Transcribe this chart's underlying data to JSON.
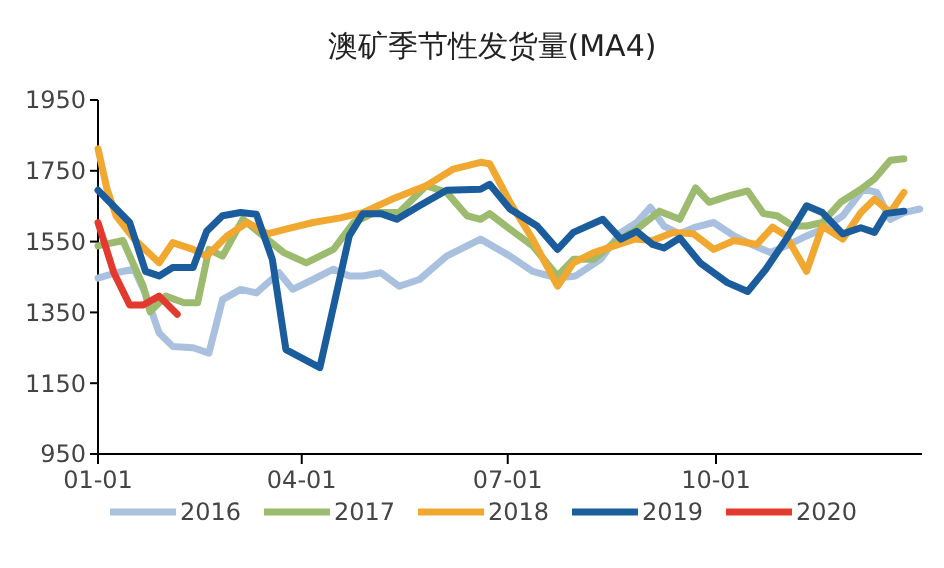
{
  "chart_data": {
    "type": "line",
    "title": "澳矿季节性发货量(MA4)",
    "xlim": [
      "--01-01",
      "--12-31"
    ],
    "xticks": [
      {
        "value": "--01-01",
        "label": "01-01"
      },
      {
        "value": "--04-01",
        "label": "04-01"
      },
      {
        "value": "--07-01",
        "label": "07-01"
      },
      {
        "value": "--10-01",
        "label": "10-01"
      }
    ],
    "ylim": [
      950,
      1950
    ],
    "yticks": [
      950,
      1150,
      1350,
      1550,
      1750,
      1950
    ],
    "grid": false,
    "legend": "bottom",
    "marker": "none",
    "line_style": "solid",
    "series": [
      {
        "name": "2016",
        "color": "#a9c1de",
        "x": [
          "--01-01",
          "--01-09",
          "--01-17",
          "--01-22",
          "--01-28",
          "--02-03",
          "--02-12",
          "--02-19",
          "--02-25",
          "--03-05",
          "--03-12",
          "--03-22",
          "--03-28",
          "--04-06",
          "--04-15",
          "--04-22",
          "--04-28",
          "--05-06",
          "--05-14",
          "--05-23",
          "--06-04",
          "--06-19",
          "--07-02",
          "--07-12",
          "--07-23",
          "--07-31",
          "--08-11",
          "--08-20",
          "--08-27",
          "--09-02",
          "--09-08",
          "--09-15",
          "--09-22",
          "--09-30",
          "--10-09",
          "--10-18",
          "--10-25",
          "--11-01",
          "--11-10",
          "--11-17",
          "--11-26",
          "--12-05",
          "--12-11",
          "--12-17",
          "--12-23",
          "--12-30"
        ],
        "values": [
          1447,
          1462,
          1472,
          1402,
          1292,
          1254,
          1250,
          1235,
          1386,
          1415,
          1405,
          1462,
          1415,
          1443,
          1472,
          1453,
          1453,
          1462,
          1424,
          1443,
          1509,
          1557,
          1509,
          1466,
          1447,
          1453,
          1500,
          1576,
          1604,
          1647,
          1594,
          1572,
          1591,
          1604,
          1566,
          1538,
          1519,
          1538,
          1566,
          1585,
          1623,
          1698,
          1689,
          1613,
          1632,
          1642
        ]
      },
      {
        "name": "2017",
        "color": "#9cbb6e",
        "x": [
          "--01-01",
          "--01-12",
          "--01-21",
          "--01-24",
          "--01-31",
          "--02-08",
          "--02-14",
          "--02-19",
          "--02-25",
          "--03-06",
          "--03-15",
          "--03-24",
          "--04-03",
          "--04-15",
          "--04-24",
          "--05-03",
          "--05-14",
          "--05-26",
          "--06-04",
          "--06-13",
          "--06-19",
          "--06-23",
          "--07-02",
          "--07-12",
          "--07-23",
          "--07-30",
          "--08-08",
          "--08-17",
          "--08-27",
          "--09-06",
          "--09-15",
          "--09-22",
          "--09-28",
          "--10-07",
          "--10-15",
          "--10-22",
          "--10-28",
          "--11-04",
          "--11-10",
          "--11-17",
          "--11-25",
          "--12-04",
          "--12-10",
          "--12-17",
          "--12-23"
        ],
        "values": [
          1538,
          1553,
          1424,
          1352,
          1396,
          1377,
          1377,
          1528,
          1509,
          1613,
          1566,
          1519,
          1490,
          1528,
          1604,
          1632,
          1632,
          1708,
          1689,
          1623,
          1613,
          1629,
          1585,
          1538,
          1453,
          1500,
          1500,
          1547,
          1585,
          1636,
          1613,
          1702,
          1661,
          1680,
          1693,
          1629,
          1623,
          1594,
          1594,
          1604,
          1661,
          1698,
          1727,
          1780,
          1784
        ]
      },
      {
        "name": "2018",
        "color": "#f0a830",
        "x": [
          "--01-01",
          "--01-05",
          "--01-09",
          "--01-17",
          "--01-28",
          "--02-03",
          "--02-12",
          "--02-18",
          "--02-27",
          "--03-08",
          "--03-17",
          "--03-25",
          "--04-06",
          "--04-18",
          "--04-28",
          "--05-11",
          "--05-26",
          "--06-07",
          "--06-19",
          "--06-23",
          "--07-02",
          "--07-12",
          "--07-23",
          "--07-30",
          "--08-08",
          "--08-17",
          "--08-26",
          "--09-03",
          "--09-12",
          "--09-21",
          "--09-30",
          "--10-09",
          "--10-19",
          "--10-26",
          "--11-01",
          "--11-10",
          "--11-17",
          "--11-26",
          "--12-04",
          "--12-10",
          "--12-17",
          "--12-23"
        ],
        "values": [
          1812,
          1698,
          1623,
          1557,
          1490,
          1547,
          1528,
          1509,
          1566,
          1604,
          1572,
          1585,
          1604,
          1617,
          1632,
          1670,
          1708,
          1755,
          1774,
          1770,
          1661,
          1557,
          1424,
          1490,
          1519,
          1538,
          1557,
          1553,
          1576,
          1572,
          1528,
          1553,
          1542,
          1591,
          1566,
          1466,
          1594,
          1557,
          1632,
          1670,
          1632,
          1689
        ]
      },
      {
        "name": "2019",
        "color": "#1a5c9c",
        "x": [
          "--01-01",
          "--01-15",
          "--01-22",
          "--01-28",
          "--02-03",
          "--02-12",
          "--02-18",
          "--02-25",
          "--03-05",
          "--03-12",
          "--03-19",
          "--03-25",
          "--04-09",
          "--04-22",
          "--04-28",
          "--05-06",
          "--05-13",
          "--05-23",
          "--06-04",
          "--06-19",
          "--06-23",
          "--07-02",
          "--07-14",
          "--07-23",
          "--07-30",
          "--08-12",
          "--08-20",
          "--08-27",
          "--09-03",
          "--09-08",
          "--09-15",
          "--09-24",
          "--10-06",
          "--10-15",
          "--10-23",
          "--11-01",
          "--11-10",
          "--11-17",
          "--11-26",
          "--12-04",
          "--12-10",
          "--12-15",
          "--12-23"
        ],
        "values": [
          1695,
          1604,
          1466,
          1453,
          1477,
          1477,
          1579,
          1623,
          1632,
          1627,
          1500,
          1245,
          1194,
          1566,
          1629,
          1629,
          1613,
          1651,
          1695,
          1698,
          1712,
          1642,
          1594,
          1528,
          1576,
          1613,
          1557,
          1579,
          1542,
          1532,
          1560,
          1490,
          1434,
          1409,
          1472,
          1557,
          1651,
          1632,
          1572,
          1589,
          1576,
          1629,
          1636
        ]
      },
      {
        "name": "2020",
        "color": "#e23a2e",
        "x": [
          "--01-01",
          "--01-08",
          "--01-15",
          "--01-21",
          "--01-28",
          "--02-05"
        ],
        "values": [
          1604,
          1462,
          1371,
          1371,
          1396,
          1345
        ]
      }
    ]
  }
}
